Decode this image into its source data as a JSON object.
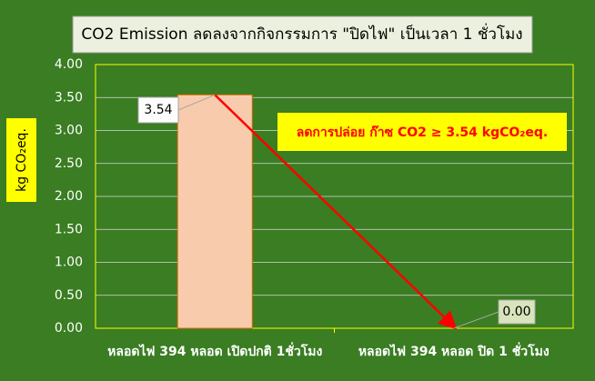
{
  "chart_data": {
    "type": "bar",
    "title": "CO2 Emission ลดลงจากกิจกรรมการ \"ปิดไฟ\" เป็นเวลา 1 ชั่วโมง",
    "y_label": "kg CO₂eq.",
    "annotation": "ลดการปล่อย   ก๊าซ CO2 ≥ 3.54 kgCO₂eq.",
    "categories": [
      "หลอดไฟ 394 หลอด เปิดปกติ 1ชั่วโมง",
      "หลอดไฟ 394 หลอด ปิด 1 ชั่วโมง"
    ],
    "values": [
      3.54,
      0.0
    ],
    "value_labels": [
      "3.54",
      "0.00"
    ],
    "color": "#f8cbad",
    "ylim": [
      0,
      4
    ],
    "yticks": [
      {
        "value": 0,
        "label": "0.00"
      },
      {
        "value": 0.5,
        "label": "0.50"
      },
      {
        "value": 1,
        "label": "1.00"
      },
      {
        "value": 1.5,
        "label": "1.50"
      },
      {
        "value": 2,
        "label": "2.00"
      },
      {
        "value": 2.5,
        "label": "2.50"
      },
      {
        "value": 3,
        "label": "3.00"
      },
      {
        "value": 3.5,
        "label": "3.50"
      },
      {
        "value": 4,
        "label": "4.00"
      }
    ],
    "grid": true
  }
}
